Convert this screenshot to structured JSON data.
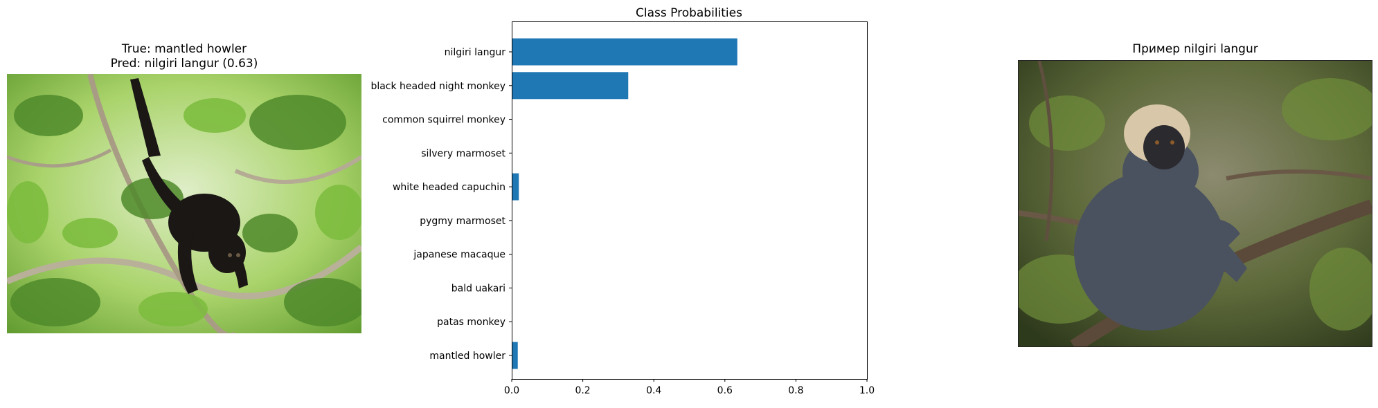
{
  "left_panel": {
    "title_line1": "True: mantled howler",
    "title_line2": "Pred: nilgiri langur (0.63)"
  },
  "right_panel": {
    "title": "Пример nilgiri langur"
  },
  "colors": {
    "bar": "#1f77b4",
    "foliage_light": "#9ccf5a",
    "foliage_dark": "#3f6a22",
    "monkey_fur": "#1a1714",
    "langur_fur": "#4a5260",
    "langur_head": "#d8c7a8"
  },
  "chart_data": {
    "type": "bar",
    "orientation": "horizontal",
    "title": "Class Probabilities",
    "categories": [
      "nilgiri langur",
      "black headed night monkey",
      "common squirrel monkey",
      "silvery marmoset",
      "white headed capuchin",
      "pygmy marmoset",
      "japanese macaque",
      "bald uakari",
      "patas monkey",
      "mantled howler"
    ],
    "values": [
      0.635,
      0.328,
      0.0,
      0.0,
      0.02,
      0.0,
      0.0,
      0.0,
      0.0,
      0.017
    ],
    "xlim": [
      0,
      1.0
    ],
    "xticks": [
      "0.0",
      "0.2",
      "0.4",
      "0.6",
      "0.8",
      "1.0"
    ],
    "grid": false
  }
}
